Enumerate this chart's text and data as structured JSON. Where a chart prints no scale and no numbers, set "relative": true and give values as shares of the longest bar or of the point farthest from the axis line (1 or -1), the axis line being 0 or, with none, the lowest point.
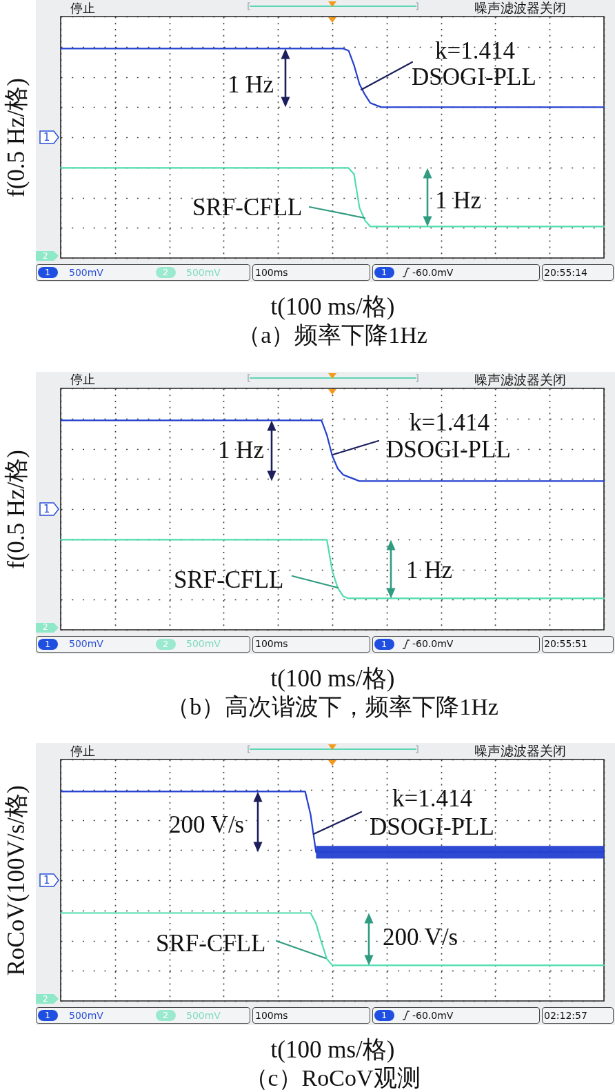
{
  "chart_data": [
    {
      "type": "line",
      "title": "（a）频率下降1Hz",
      "xlabel": "t(100 ms/格)",
      "ylabel": "f(0.5 Hz/格)",
      "relative": true,
      "grid": true,
      "categories": [
        null,
        null,
        null,
        null,
        null,
        null,
        null,
        null,
        null,
        null,
        null,
        null,
        null,
        null,
        null,
        null,
        null,
        null,
        null,
        null,
        null,
        null,
        null,
        null,
        null,
        null,
        null,
        null,
        null,
        null,
        null,
        null,
        null,
        null,
        null,
        null,
        null,
        null,
        null,
        null,
        null,
        null,
        null,
        null,
        null,
        null,
        null,
        null,
        null,
        null,
        null,
        null,
        null,
        null,
        null,
        null,
        null,
        null,
        null,
        null,
        null,
        null,
        null,
        null,
        null,
        null,
        null,
        null,
        null,
        null,
        null,
        null,
        null,
        null,
        null,
        null,
        null,
        null,
        null,
        null,
        null,
        null,
        null,
        null,
        null,
        null,
        null,
        null,
        null,
        null,
        null,
        null,
        null,
        null,
        null,
        null,
        null,
        null,
        null,
        null,
        null
      ],
      "series": [
        {
          "name": "DSOGI-PLL",
          "color": "#2440d0",
          "values": [
            1,
            1,
            1,
            1,
            1,
            1,
            1,
            1,
            1,
            1,
            1,
            1,
            1,
            1,
            1,
            1,
            1,
            1,
            1,
            1,
            1,
            1,
            1,
            1,
            1,
            1,
            1,
            1,
            1,
            1,
            1,
            1,
            1,
            1,
            1,
            1,
            1,
            1,
            1,
            1,
            1,
            1,
            1,
            1,
            1,
            1,
            1,
            1,
            1,
            1,
            1,
            1,
            1,
            0.99,
            0.92,
            0.83,
            0.78,
            0.74,
            0.73,
            0.72,
            0.72,
            0.72,
            0.72,
            0.72,
            0.72,
            0.72,
            0.72,
            0.72,
            0.72,
            0.72,
            0.72,
            0.72,
            0.72,
            0.72,
            0.72,
            0.72,
            0.72,
            0.72,
            0.72,
            0.72,
            0.72,
            0.72,
            0.72,
            0.72,
            0.72,
            0.72,
            0.72,
            0.72,
            0.72,
            0.72,
            0.72,
            0.72,
            0.72,
            0.72,
            0.72,
            0.72,
            0.72,
            0.72,
            0.72,
            0.72,
            0.72
          ]
        },
        {
          "name": "SRF-CFLL",
          "color": "#4fdcae",
          "values": [
            0.43,
            0.43,
            0.43,
            0.43,
            0.43,
            0.43,
            0.43,
            0.43,
            0.43,
            0.43,
            0.43,
            0.43,
            0.43,
            0.43,
            0.43,
            0.43,
            0.43,
            0.43,
            0.43,
            0.43,
            0.43,
            0.43,
            0.43,
            0.43,
            0.43,
            0.43,
            0.43,
            0.43,
            0.43,
            0.43,
            0.43,
            0.43,
            0.43,
            0.43,
            0.43,
            0.43,
            0.43,
            0.43,
            0.43,
            0.43,
            0.43,
            0.43,
            0.43,
            0.43,
            0.43,
            0.43,
            0.43,
            0.43,
            0.43,
            0.43,
            0.43,
            0.43,
            0.43,
            0.43,
            0.4,
            0.24,
            0.18,
            0.15,
            0.15,
            0.15,
            0.15,
            0.15,
            0.15,
            0.15,
            0.15,
            0.15,
            0.15,
            0.15,
            0.15,
            0.15,
            0.15,
            0.15,
            0.15,
            0.15,
            0.15,
            0.15,
            0.15,
            0.15,
            0.15,
            0.15,
            0.15,
            0.15,
            0.15,
            0.15,
            0.15,
            0.15,
            0.15,
            0.15,
            0.15,
            0.15,
            0.15,
            0.15,
            0.15,
            0.15,
            0.15,
            0.15,
            0.15,
            0.15,
            0.15,
            0.15,
            0.15
          ]
        }
      ],
      "annotations": [
        "停止",
        "噪声滤波器关闭",
        "1",
        "2",
        "1",
        "500mV",
        "2",
        "500mV",
        "100ms",
        "1",
        "-60.0mV",
        "20:55:14",
        "k=1.414",
        "1 Hz",
        "1 Hz"
      ]
    },
    {
      "type": "line",
      "title": "（b）高次谐波下，频率下降1Hz",
      "xlabel": "t(100 ms/格)",
      "ylabel": "f(0.5 Hz/格)",
      "relative": true,
      "grid": true,
      "categories": [
        null,
        null,
        null,
        null,
        null,
        null,
        null,
        null,
        null,
        null,
        null,
        null,
        null,
        null,
        null,
        null,
        null,
        null,
        null,
        null,
        null,
        null,
        null,
        null,
        null,
        null,
        null,
        null,
        null,
        null,
        null,
        null,
        null,
        null,
        null,
        null,
        null,
        null,
        null,
        null,
        null,
        null,
        null,
        null,
        null,
        null,
        null,
        null,
        null,
        null,
        null,
        null,
        null,
        null,
        null,
        null,
        null,
        null,
        null,
        null,
        null,
        null,
        null,
        null,
        null,
        null,
        null,
        null,
        null,
        null,
        null,
        null,
        null,
        null,
        null,
        null,
        null,
        null,
        null,
        null,
        null,
        null,
        null,
        null,
        null,
        null,
        null,
        null,
        null,
        null,
        null,
        null,
        null,
        null,
        null,
        null,
        null,
        null,
        null,
        null,
        null
      ],
      "series": [
        {
          "name": "DSOGI-PLL",
          "color": "#2440d0",
          "values": [
            1,
            1,
            1,
            1,
            1,
            1,
            1,
            1,
            1,
            1,
            1,
            1,
            1,
            1,
            1,
            1,
            1,
            1,
            1,
            1,
            1,
            1,
            1,
            1,
            1,
            1,
            1,
            1,
            1,
            1,
            1,
            1,
            1,
            1,
            1,
            1,
            1,
            1,
            1,
            1,
            1,
            1,
            1,
            1,
            1,
            1,
            1,
            1,
            1,
            0.93,
            0.83,
            0.77,
            0.74,
            0.73,
            0.72,
            0.71,
            0.71,
            0.71,
            0.71,
            0.71,
            0.71,
            0.71,
            0.71,
            0.71,
            0.71,
            0.71,
            0.71,
            0.71,
            0.71,
            0.71,
            0.71,
            0.71,
            0.71,
            0.71,
            0.71,
            0.71,
            0.71,
            0.71,
            0.71,
            0.71,
            0.71,
            0.71,
            0.71,
            0.71,
            0.71,
            0.71,
            0.71,
            0.71,
            0.71,
            0.71,
            0.71,
            0.71,
            0.71,
            0.71,
            0.71,
            0.71,
            0.71,
            0.71,
            0.71,
            0.71,
            0.71
          ]
        },
        {
          "name": "SRF-CFLL",
          "color": "#4fdcae",
          "values": [
            0.43,
            0.43,
            0.43,
            0.43,
            0.43,
            0.43,
            0.43,
            0.43,
            0.43,
            0.43,
            0.43,
            0.43,
            0.43,
            0.43,
            0.43,
            0.43,
            0.43,
            0.43,
            0.43,
            0.43,
            0.43,
            0.43,
            0.43,
            0.43,
            0.43,
            0.43,
            0.43,
            0.43,
            0.43,
            0.43,
            0.43,
            0.43,
            0.43,
            0.43,
            0.43,
            0.43,
            0.43,
            0.43,
            0.43,
            0.43,
            0.43,
            0.43,
            0.43,
            0.43,
            0.43,
            0.43,
            0.43,
            0.43,
            0.43,
            0.43,
            0.28,
            0.2,
            0.16,
            0.15,
            0.15,
            0.15,
            0.15,
            0.15,
            0.15,
            0.15,
            0.15,
            0.15,
            0.15,
            0.15,
            0.15,
            0.15,
            0.15,
            0.15,
            0.15,
            0.15,
            0.15,
            0.15,
            0.15,
            0.15,
            0.15,
            0.15,
            0.15,
            0.15,
            0.15,
            0.15,
            0.15,
            0.15,
            0.15,
            0.15,
            0.15,
            0.15,
            0.15,
            0.15,
            0.15,
            0.15,
            0.15,
            0.15,
            0.15,
            0.15,
            0.15,
            0.15,
            0.15,
            0.15,
            0.15,
            0.15,
            0.15
          ]
        }
      ],
      "annotations": [
        "停止",
        "噪声滤波器关闭",
        "1",
        "2",
        "1",
        "500mV",
        "2",
        "500mV",
        "100ms",
        "1",
        "-60.0mV",
        "20:55:51",
        "k=1.414",
        "1 Hz",
        "1 Hz"
      ]
    },
    {
      "type": "line",
      "title": "（c）RoCoV观测",
      "xlabel": "t(100 ms/格)",
      "ylabel": "RoCoV(100V/s/格)",
      "relative": true,
      "grid": true,
      "categories": [
        null,
        null,
        null,
        null,
        null,
        null,
        null,
        null,
        null,
        null,
        null,
        null,
        null,
        null,
        null,
        null,
        null,
        null,
        null,
        null,
        null,
        null,
        null,
        null,
        null,
        null,
        null,
        null,
        null,
        null,
        null,
        null,
        null,
        null,
        null,
        null,
        null,
        null,
        null,
        null,
        null,
        null,
        null,
        null,
        null,
        null,
        null,
        null,
        null,
        null,
        null,
        null,
        null,
        null,
        null,
        null,
        null,
        null,
        null,
        null,
        null,
        null,
        null,
        null,
        null,
        null,
        null,
        null,
        null,
        null,
        null,
        null,
        null,
        null,
        null,
        null,
        null,
        null,
        null,
        null,
        null,
        null,
        null,
        null,
        null,
        null,
        null,
        null,
        null,
        null,
        null,
        null,
        null,
        null,
        null,
        null,
        null,
        null,
        null,
        null,
        null
      ],
      "series": [
        {
          "name": "DSOGI-PLL",
          "color": "#2440d0",
          "values": [
            1,
            1,
            1,
            1,
            1,
            1,
            1,
            1,
            1,
            1,
            1,
            1,
            1,
            1,
            1,
            1,
            1,
            1,
            1,
            1,
            1,
            1,
            1,
            1,
            1,
            1,
            1,
            1,
            1,
            1,
            1,
            1,
            1,
            1,
            1,
            1,
            1,
            1,
            1,
            1,
            1,
            1,
            1,
            1,
            1,
            1,
            0.89,
            0.71,
            0.71,
            0.71,
            0.71,
            0.71,
            0.71,
            0.71,
            0.71,
            0.71,
            0.71,
            0.71,
            0.71,
            0.71,
            0.71,
            0.71,
            0.71,
            0.71,
            0.71,
            0.71,
            0.71,
            0.71,
            0.71,
            0.71,
            0.71,
            0.71,
            0.71,
            0.71,
            0.71,
            0.71,
            0.71,
            0.71,
            0.71,
            0.71,
            0.71,
            0.71,
            0.71,
            0.71,
            0.71,
            0.71,
            0.71,
            0.71,
            0.71,
            0.71,
            0.71,
            0.71,
            0.71,
            0.71,
            0.71,
            0.71,
            0.71,
            0.71,
            0.71,
            0.71,
            0.71
          ],
          "lower": [
            null,
            null,
            null,
            null,
            null,
            null,
            null,
            null,
            null,
            null,
            null,
            null,
            null,
            null,
            null,
            null,
            null,
            null,
            null,
            null,
            null,
            null,
            null,
            null,
            null,
            null,
            null,
            null,
            null,
            null,
            null,
            null,
            null,
            null,
            null,
            null,
            null,
            null,
            null,
            null,
            null,
            null,
            null,
            null,
            null,
            null,
            null,
            0.68,
            0.68,
            0.68,
            0.68,
            0.68,
            0.68,
            0.68,
            0.68,
            0.68,
            0.68,
            0.68,
            0.68,
            0.68,
            0.68,
            0.68,
            0.68,
            0.68,
            0.68,
            0.68,
            0.68,
            0.68,
            0.68,
            0.68,
            0.68,
            0.68,
            0.68,
            0.68,
            0.68,
            0.68,
            0.68,
            0.68,
            0.68,
            0.68,
            0.68,
            0.68,
            0.68,
            0.68,
            0.68,
            0.68,
            0.68,
            0.68,
            0.68,
            0.68,
            0.68,
            0.68,
            0.68,
            0.68,
            0.68,
            0.68,
            0.68,
            0.68,
            0.68,
            0.68,
            0.68
          ],
          "upper": [
            null,
            null,
            null,
            null,
            null,
            null,
            null,
            null,
            null,
            null,
            null,
            null,
            null,
            null,
            null,
            null,
            null,
            null,
            null,
            null,
            null,
            null,
            null,
            null,
            null,
            null,
            null,
            null,
            null,
            null,
            null,
            null,
            null,
            null,
            null,
            null,
            null,
            null,
            null,
            null,
            null,
            null,
            null,
            null,
            null,
            null,
            null,
            0.74,
            0.74,
            0.74,
            0.74,
            0.74,
            0.74,
            0.74,
            0.74,
            0.74,
            0.74,
            0.74,
            0.74,
            0.74,
            0.74,
            0.74,
            0.74,
            0.74,
            0.74,
            0.74,
            0.74,
            0.74,
            0.74,
            0.74,
            0.74,
            0.74,
            0.74,
            0.74,
            0.74,
            0.74,
            0.74,
            0.74,
            0.74,
            0.74,
            0.74,
            0.74,
            0.74,
            0.74,
            0.74,
            0.74,
            0.74,
            0.74,
            0.74,
            0.74,
            0.74,
            0.74,
            0.74,
            0.74,
            0.74,
            0.74,
            0.74,
            0.74,
            0.74,
            0.74,
            0.74
          ]
        },
        {
          "name": "SRF-CFLL",
          "color": "#4fdcae",
          "values": [
            0.42,
            0.42,
            0.42,
            0.42,
            0.42,
            0.42,
            0.42,
            0.42,
            0.42,
            0.42,
            0.42,
            0.42,
            0.42,
            0.42,
            0.42,
            0.42,
            0.42,
            0.42,
            0.42,
            0.42,
            0.42,
            0.42,
            0.42,
            0.42,
            0.42,
            0.42,
            0.42,
            0.42,
            0.42,
            0.42,
            0.42,
            0.42,
            0.42,
            0.42,
            0.42,
            0.42,
            0.42,
            0.42,
            0.42,
            0.42,
            0.42,
            0.42,
            0.42,
            0.42,
            0.42,
            0.42,
            0.42,
            0.37,
            0.28,
            0.2,
            0.17,
            0.17,
            0.17,
            0.17,
            0.17,
            0.17,
            0.17,
            0.17,
            0.17,
            0.17,
            0.17,
            0.17,
            0.17,
            0.17,
            0.17,
            0.17,
            0.17,
            0.17,
            0.17,
            0.17,
            0.17,
            0.17,
            0.17,
            0.17,
            0.17,
            0.17,
            0.17,
            0.17,
            0.17,
            0.17,
            0.17,
            0.17,
            0.17,
            0.17,
            0.17,
            0.17,
            0.17,
            0.17,
            0.17,
            0.17,
            0.17,
            0.17,
            0.17,
            0.17,
            0.17,
            0.17,
            0.17,
            0.17,
            0.17,
            0.17,
            0.17
          ]
        }
      ],
      "annotations": [
        "停止",
        "噪声滤波器关闭",
        "1",
        "2",
        "1",
        "500mV",
        "2",
        "500mV",
        "100ms",
        "1",
        "-60.0mV",
        "02:12:57",
        "k=1.414",
        "200 V/s",
        "200 V/s"
      ]
    }
  ]
}
